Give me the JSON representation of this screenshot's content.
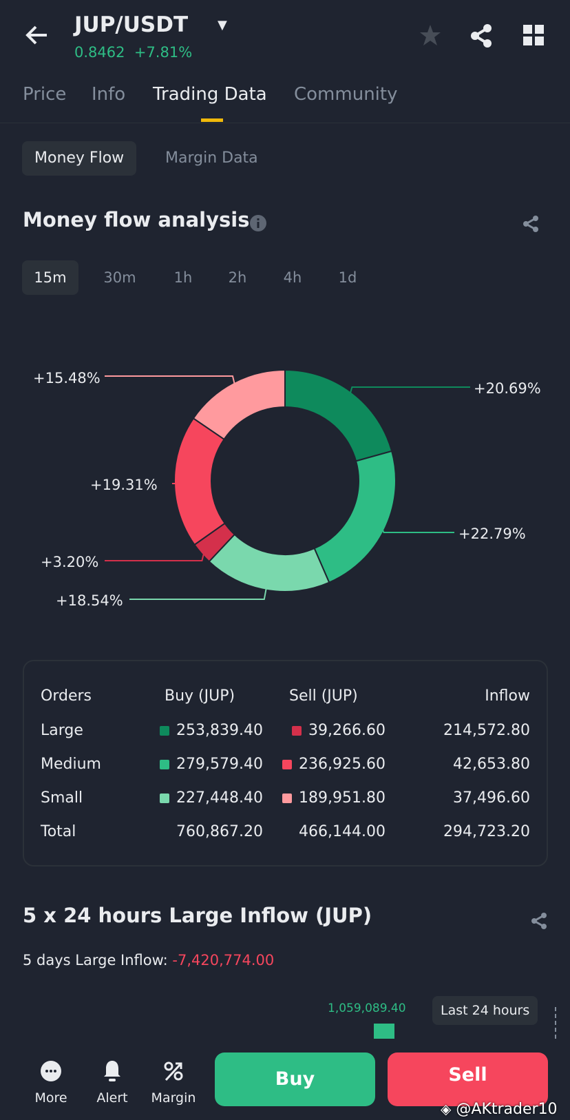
{
  "header": {
    "pair": "JUP/USDT",
    "price": "0.8462",
    "change": "+7.81%"
  },
  "tabs": [
    "Price",
    "Info",
    "Trading Data",
    "Community"
  ],
  "subtabs": [
    "Money Flow",
    "Margin Data"
  ],
  "money_flow": {
    "title": "Money flow analysis",
    "timeframes": [
      "15m",
      "30m",
      "1h",
      "2h",
      "4h",
      "1d"
    ],
    "segments": [
      {
        "label": "+20.69%",
        "value": 20.69,
        "color": "#0e8a5c"
      },
      {
        "label": "+22.79%",
        "value": 22.79,
        "color": "#2ebd85"
      },
      {
        "label": "+18.54%",
        "value": 18.54,
        "color": "#7ad8ad"
      },
      {
        "label": "+3.20%",
        "value": 3.2,
        "color": "#d4304b"
      },
      {
        "label": "+19.31%",
        "value": 19.31,
        "color": "#f6465d"
      },
      {
        "label": "+15.48%",
        "value": 15.48,
        "color": "#ff9a9e"
      }
    ]
  },
  "table": {
    "headers": [
      "Orders",
      "Buy (JUP)",
      "Sell (JUP)",
      "Inflow"
    ],
    "rows": [
      [
        "Large",
        "253,839.40",
        "39,266.60",
        "214,572.80"
      ],
      [
        "Medium",
        "279,579.40",
        "236,925.60",
        "42,653.80"
      ],
      [
        "Small",
        "227,448.40",
        "189,951.80",
        "37,496.60"
      ],
      [
        "Total",
        "760,867.20",
        "466,144.00",
        "294,723.20"
      ]
    ]
  },
  "large_inflow": {
    "title": "5 x 24 hours Large Inflow (JUP)",
    "label": "5 days Large Inflow:",
    "value": "-7,420,774.00",
    "bar_value": "1,059,089.40",
    "tooltip": "Last 24 hours"
  },
  "bottom": {
    "more": "More",
    "alert": "Alert",
    "margin": "Margin",
    "buy": "Buy",
    "sell": "Sell"
  },
  "watermark": "@AKtrader10",
  "colors": {
    "green": "#2ebd85",
    "red": "#f6465d",
    "accent": "#f0b90b"
  }
}
